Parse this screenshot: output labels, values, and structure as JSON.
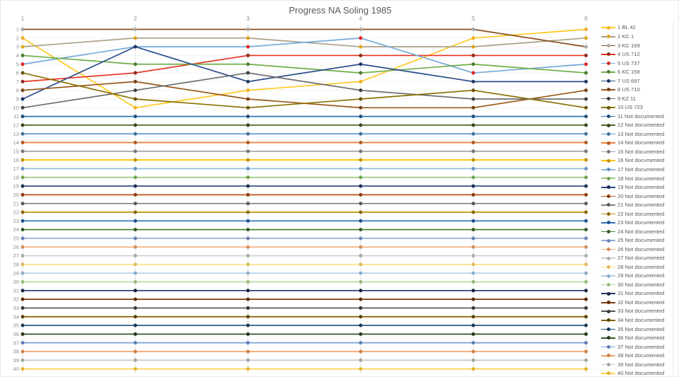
{
  "chart_data": {
    "type": "line",
    "title": "Progress NA Soling 1985",
    "xlabel": "",
    "ylabel": "",
    "x": [
      1,
      2,
      3,
      4,
      5,
      6
    ],
    "x_tick_labels": [
      "1",
      "2",
      "3",
      "4",
      "5",
      "6"
    ],
    "y_tick_labels": [
      "1",
      "2",
      "3",
      "4",
      "5",
      "6",
      "7",
      "8",
      "9",
      "10",
      "11",
      "12",
      "13",
      "14",
      "15",
      "16",
      "17",
      "18",
      "19",
      "20",
      "21",
      "22",
      "23",
      "24",
      "25",
      "26",
      "27",
      "28",
      "29",
      "30",
      "31",
      "32",
      "33",
      "34",
      "35",
      "36",
      "37",
      "38",
      "39",
      "40"
    ],
    "ylim": [
      1,
      40
    ],
    "y_axis_inverted": true,
    "grid": true,
    "legend_position": "right",
    "colors": {
      "title_text": "#595959",
      "tick_text": "#8c8c8c",
      "legend_text": "#595959",
      "grid_vertical": "#e2e2e2",
      "grid_horizontal": "#f3f3f3",
      "background": "#ffffff"
    },
    "series": [
      {
        "name": "1 BL 42",
        "color": "#ffc81f",
        "marker": "#efaf26",
        "values": [
          2,
          10,
          8,
          7,
          2,
          1
        ]
      },
      {
        "name": "2 KC 1",
        "color": "#aca088",
        "marker": "#dfa619",
        "values": [
          3,
          2,
          2,
          3,
          3,
          2
        ]
      },
      {
        "name": "3 KC 169",
        "color": "#874e21",
        "marker": "#a8a8a8",
        "values": [
          1,
          1,
          1,
          1,
          1,
          3
        ]
      },
      {
        "name": "4 US 712",
        "color": "#e63323",
        "marker": "#8f2c20",
        "values": [
          7,
          6,
          4,
          4,
          4,
          4
        ]
      },
      {
        "name": "5 US 737",
        "color": "#74aad9",
        "marker": "#e02424",
        "values": [
          5,
          3,
          3,
          2,
          6,
          5
        ]
      },
      {
        "name": "6 KC 158",
        "color": "#6fae49",
        "marker": "#4e7d33",
        "values": [
          4,
          5,
          5,
          6,
          5,
          6
        ]
      },
      {
        "name": "7 US 697",
        "color": "#2b4e8c",
        "marker": "#1f3864",
        "values": [
          9,
          3,
          7,
          5,
          7,
          7
        ]
      },
      {
        "name": "8 US 710",
        "color": "#99591b",
        "marker": "#7a4316",
        "values": [
          8,
          7,
          9,
          10,
          10,
          8
        ]
      },
      {
        "name": "9 KZ 11",
        "color": "#6e6e6e",
        "marker": "#404040",
        "values": [
          10,
          8,
          6,
          8,
          9,
          9
        ]
      },
      {
        "name": "10 US 723",
        "color": "#8b7103",
        "marker": "#6a5602",
        "values": [
          6,
          9,
          10,
          9,
          8,
          10
        ]
      },
      {
        "name": "11 Not documented",
        "color": "#2e75b6",
        "marker": "#1f4e79",
        "values": [
          11,
          11,
          11,
          11,
          11,
          11
        ]
      },
      {
        "name": "12 Not documented",
        "color": "#4f6b2b",
        "marker": "#33491a",
        "values": [
          12,
          12,
          12,
          12,
          12,
          12
        ]
      },
      {
        "name": "13 Not documented",
        "color": "#5b9bd5",
        "marker": "#41719c",
        "values": [
          13,
          13,
          13,
          13,
          13,
          13
        ]
      },
      {
        "name": "14 Not documented",
        "color": "#ed7d31",
        "marker": "#ae5a21",
        "values": [
          14,
          14,
          14,
          14,
          14,
          14
        ]
      },
      {
        "name": "15 Not documented",
        "color": "#a6a6a6",
        "marker": "#767676",
        "values": [
          15,
          15,
          15,
          15,
          15,
          15
        ]
      },
      {
        "name": "16 Not documented",
        "color": "#ffc000",
        "marker": "#bf8f00",
        "values": [
          16,
          16,
          16,
          16,
          16,
          16
        ]
      },
      {
        "name": "17 Not documented",
        "color": "#8fb9de",
        "marker": "#6694be",
        "values": [
          17,
          17,
          17,
          17,
          17,
          17
        ]
      },
      {
        "name": "18 Not documented",
        "color": "#9dc97e",
        "marker": "#71a34f",
        "values": [
          18,
          18,
          18,
          18,
          18,
          18
        ]
      },
      {
        "name": "19 Not documented",
        "color": "#26477e",
        "marker": "#1b3257",
        "values": [
          19,
          19,
          19,
          19,
          19,
          19
        ]
      },
      {
        "name": "20 Not documented",
        "color": "#bc5310",
        "marker": "#8b3d0c",
        "values": [
          20,
          20,
          20,
          20,
          20,
          20
        ]
      },
      {
        "name": "21 Not documented",
        "color": "#7f7f7f",
        "marker": "#595959",
        "values": [
          21,
          21,
          21,
          21,
          21,
          21
        ]
      },
      {
        "name": "22 Not documented",
        "color": "#bf9000",
        "marker": "#8a6800",
        "values": [
          22,
          22,
          22,
          22,
          22,
          22
        ]
      },
      {
        "name": "23 Not documented",
        "color": "#2c70b8",
        "marker": "#1f5490",
        "values": [
          23,
          23,
          23,
          23,
          23,
          23
        ]
      },
      {
        "name": "24 Not documented",
        "color": "#4e8234",
        "marker": "#375c25",
        "values": [
          24,
          24,
          24,
          24,
          24,
          24
        ]
      },
      {
        "name": "25 Not documented",
        "color": "#8faadc",
        "marker": "#6a83b5",
        "values": [
          25,
          25,
          25,
          25,
          25,
          25
        ]
      },
      {
        "name": "26 Not documented",
        "color": "#f4b183",
        "marker": "#d28e5f",
        "values": [
          26,
          26,
          26,
          26,
          26,
          26
        ]
      },
      {
        "name": "27 Not documented",
        "color": "#cfcfcf",
        "marker": "#ababab",
        "values": [
          27,
          27,
          27,
          27,
          27,
          27
        ]
      },
      {
        "name": "28 Not documented",
        "color": "#ffe18a",
        "marker": "#e0bc5c",
        "values": [
          28,
          28,
          28,
          28,
          28,
          28
        ]
      },
      {
        "name": "29 Not documented",
        "color": "#b4cfe8",
        "marker": "#8caecb",
        "values": [
          29,
          29,
          29,
          29,
          29,
          29
        ]
      },
      {
        "name": "30 Not documented",
        "color": "#b9dca2",
        "marker": "#94bc79",
        "values": [
          30,
          30,
          30,
          30,
          30,
          30
        ]
      },
      {
        "name": "31 Not documented",
        "color": "#203864",
        "marker": "#162644",
        "values": [
          31,
          31,
          31,
          31,
          31,
          31
        ]
      },
      {
        "name": "32 Not documented",
        "color": "#843c0c",
        "marker": "#5e2b09",
        "values": [
          32,
          32,
          32,
          32,
          32,
          32
        ]
      },
      {
        "name": "33 Not documented",
        "color": "#525252",
        "marker": "#3a3a3a",
        "values": [
          33,
          33,
          33,
          33,
          33,
          33
        ]
      },
      {
        "name": "34 Not documented",
        "color": "#7f6000",
        "marker": "#5c4500",
        "values": [
          34,
          34,
          34,
          34,
          34,
          34
        ]
      },
      {
        "name": "35 Not documented",
        "color": "#1f4e79",
        "marker": "#163a5a",
        "values": [
          35,
          35,
          35,
          35,
          35,
          35
        ]
      },
      {
        "name": "36 Not documented",
        "color": "#375623",
        "marker": "#263c18",
        "values": [
          36,
          36,
          36,
          36,
          36,
          36
        ]
      },
      {
        "name": "37 Not documented",
        "color": "#7e9fd6",
        "marker": "#5e7fb5",
        "values": [
          37,
          37,
          37,
          37,
          37,
          37
        ]
      },
      {
        "name": "38 Not documented",
        "color": "#f4a26b",
        "marker": "#d07e47",
        "values": [
          38,
          38,
          38,
          38,
          38,
          38
        ]
      },
      {
        "name": "39 Not documented",
        "color": "#c9c9c9",
        "marker": "#a5a5a5",
        "values": [
          39,
          39,
          39,
          39,
          39,
          39
        ]
      },
      {
        "name": "40 Not documented",
        "color": "#ffd34d",
        "marker": "#e3b32e",
        "values": [
          40,
          40,
          40,
          40,
          40,
          40
        ]
      }
    ]
  }
}
